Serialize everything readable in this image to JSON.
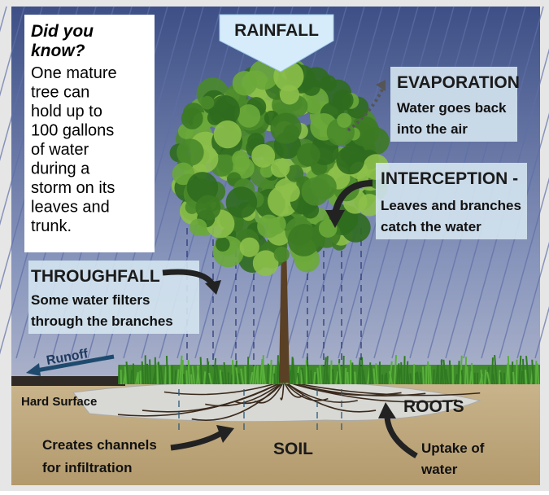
{
  "did_you_know": {
    "title": [
      "Did you",
      "know?"
    ],
    "body": [
      "One mature",
      "tree can",
      "hold up to",
      "100 gallons",
      "of water",
      "during a",
      "storm on its",
      "leaves and",
      "trunk."
    ]
  },
  "rainfall": "RAINFALL",
  "evaporation": {
    "title": "EVAPORATION",
    "text": [
      "Water goes back",
      "into the air"
    ]
  },
  "interception": {
    "title": "INTERCEPTION -",
    "text": [
      "Leaves and branches",
      "catch the water"
    ]
  },
  "throughfall": {
    "title": "THROUGHFALL",
    "text": [
      "Some water filters",
      "through the branches"
    ]
  },
  "runoff": "Runoff",
  "hard_surface": "Hard Surface",
  "roots": "ROOTS",
  "soil": "SOIL",
  "channels": [
    "Creates channels",
    "for infiltration"
  ],
  "uptake": [
    "Uptake of",
    "water"
  ]
}
